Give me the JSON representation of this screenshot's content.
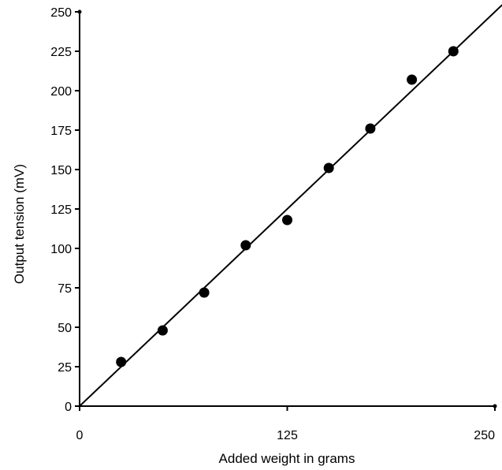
{
  "chart_data": {
    "type": "scatter",
    "title": "",
    "xlabel": "Added weight in grams",
    "ylabel": "Output tension (mV)",
    "xlim": [
      0,
      250
    ],
    "ylim": [
      0,
      250
    ],
    "x_ticks": [
      "0",
      "125",
      "250"
    ],
    "y_ticks": [
      "0",
      "25",
      "50",
      "75",
      "100",
      "125",
      "150",
      "175",
      "200",
      "225",
      "250"
    ],
    "grid": false,
    "legend": "none",
    "series": [
      {
        "x": [
          25,
          50,
          75,
          100,
          125,
          150,
          175,
          200,
          225
        ],
        "y": [
          28,
          48,
          72,
          102,
          118,
          151,
          176,
          207,
          225
        ]
      }
    ],
    "fit_line": {
      "slope": 1.0,
      "intercept": 0,
      "x_range": [
        0,
        260
      ]
    },
    "colors": {
      "points": "#000000",
      "line": "#000000",
      "axis": "#000000"
    }
  }
}
